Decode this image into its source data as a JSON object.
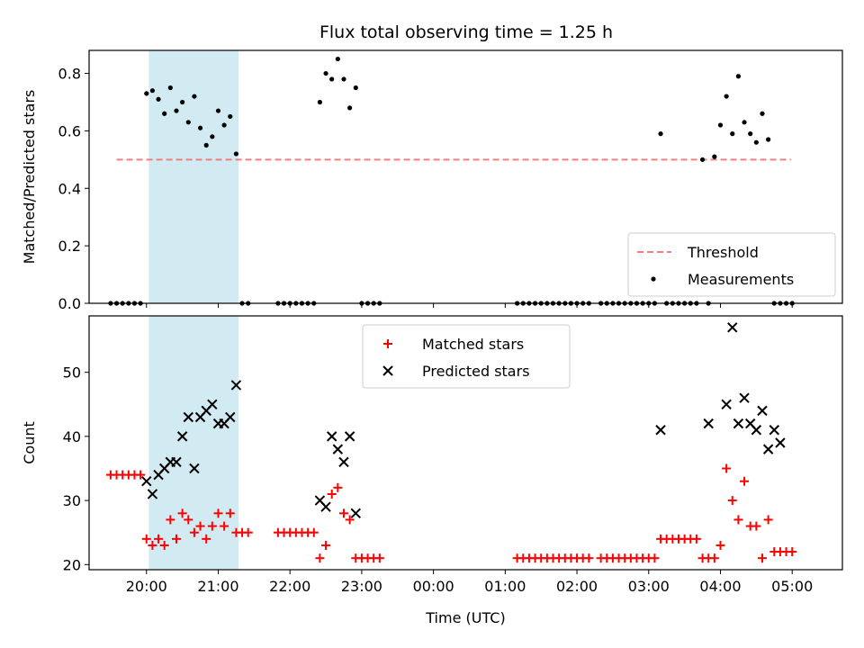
{
  "figure": {
    "title": "Flux total observing time = 1.25 h"
  },
  "chart_data": [
    {
      "type": "scatter",
      "ylabel": "Matched/Predicted stars",
      "ylim": [
        0,
        0.88
      ],
      "yticks": [
        "0.0",
        "0.2",
        "0.4",
        "0.6",
        "0.8"
      ],
      "ytick_values": [
        0,
        0.2,
        0.4,
        0.6,
        0.8
      ],
      "shaded_span": [
        "20:02",
        "21:17"
      ],
      "shade_color": "#add8e6",
      "legend_position": "lower right",
      "series": [
        {
          "name": "Threshold",
          "kind": "dashed-line",
          "color": "#f08080",
          "x": [
            "19:35",
            "04:59"
          ],
          "y": [
            0.5,
            0.5
          ]
        },
        {
          "name": "Measurements",
          "kind": "dots",
          "color": "#000000",
          "x": [
            "19:30",
            "19:35",
            "19:40",
            "19:45",
            "19:50",
            "19:55",
            "20:00",
            "20:05",
            "20:10",
            "20:15",
            "20:20",
            "20:25",
            "20:30",
            "20:35",
            "20:40",
            "20:45",
            "20:50",
            "20:55",
            "21:00",
            "21:05",
            "21:10",
            "21:15",
            "21:20",
            "21:25",
            "21:50",
            "21:55",
            "22:00",
            "22:05",
            "22:10",
            "22:15",
            "22:20",
            "22:25",
            "22:30",
            "22:35",
            "22:40",
            "22:45",
            "22:50",
            "22:55",
            "23:00",
            "23:05",
            "23:10",
            "23:15",
            "01:10",
            "01:15",
            "01:20",
            "01:25",
            "01:30",
            "01:35",
            "01:40",
            "01:45",
            "01:50",
            "01:55",
            "02:00",
            "02:05",
            "02:10",
            "02:20",
            "02:25",
            "02:30",
            "02:35",
            "02:40",
            "02:45",
            "02:50",
            "02:55",
            "03:00",
            "03:05",
            "03:10",
            "03:15",
            "03:20",
            "03:25",
            "03:30",
            "03:35",
            "03:40",
            "03:45",
            "03:50",
            "03:55",
            "04:00",
            "04:05",
            "04:10",
            "04:15",
            "04:20",
            "04:25",
            "04:30",
            "04:35",
            "04:40",
            "04:45",
            "04:50",
            "04:55",
            "05:00"
          ],
          "y": [
            0,
            0,
            0,
            0,
            0,
            0,
            0.73,
            0.74,
            0.71,
            0.66,
            0.75,
            0.67,
            0.7,
            0.63,
            0.72,
            0.61,
            0.55,
            0.58,
            0.67,
            0.62,
            0.65,
            0.52,
            0,
            0,
            0,
            0,
            0,
            0,
            0,
            0,
            0,
            0.7,
            0.8,
            0.78,
            0.85,
            0.78,
            0.68,
            0.75,
            0,
            0,
            0,
            0,
            0,
            0,
            0,
            0,
            0,
            0,
            0,
            0,
            0,
            0,
            0,
            0,
            0,
            0,
            0,
            0,
            0,
            0,
            0,
            0,
            0,
            0,
            0,
            0.59,
            0,
            0,
            0,
            0,
            0,
            0,
            0.5,
            0,
            0.51,
            0.62,
            0.72,
            0.59,
            0.79,
            0.63,
            0.59,
            0.56,
            0.66,
            0.57,
            0,
            0,
            0,
            0
          ]
        }
      ]
    },
    {
      "type": "scatter",
      "ylabel": "Count",
      "xlabel": "Time (UTC)",
      "ylim": [
        19.2,
        58.8
      ],
      "yticks": [
        "20",
        "30",
        "40",
        "50"
      ],
      "ytick_values": [
        20,
        30,
        40,
        50
      ],
      "xticks": [
        "20:00",
        "21:00",
        "22:00",
        "23:00",
        "00:00",
        "01:00",
        "02:00",
        "03:00",
        "04:00",
        "05:00"
      ],
      "shaded_span": [
        "20:02",
        "21:17"
      ],
      "shade_color": "#add8e6",
      "legend_position": "upper center",
      "series": [
        {
          "name": "Matched stars",
          "kind": "plus",
          "color": "#ff0000",
          "x": [
            "19:30",
            "19:35",
            "19:40",
            "19:45",
            "19:50",
            "19:55",
            "20:00",
            "20:05",
            "20:10",
            "20:15",
            "20:20",
            "20:25",
            "20:30",
            "20:35",
            "20:40",
            "20:45",
            "20:50",
            "20:55",
            "21:00",
            "21:05",
            "21:10",
            "21:15",
            "21:20",
            "21:25",
            "21:50",
            "21:55",
            "22:00",
            "22:05",
            "22:10",
            "22:15",
            "22:20",
            "22:25",
            "22:30",
            "22:35",
            "22:40",
            "22:45",
            "22:50",
            "22:55",
            "23:00",
            "23:05",
            "23:10",
            "23:15",
            "01:10",
            "01:15",
            "01:20",
            "01:25",
            "01:30",
            "01:35",
            "01:40",
            "01:45",
            "01:50",
            "01:55",
            "02:00",
            "02:05",
            "02:10",
            "02:20",
            "02:25",
            "02:30",
            "02:35",
            "02:40",
            "02:45",
            "02:50",
            "02:55",
            "03:00",
            "03:05",
            "03:10",
            "03:15",
            "03:20",
            "03:25",
            "03:30",
            "03:35",
            "03:40",
            "03:45",
            "03:50",
            "03:55",
            "04:00",
            "04:05",
            "04:10",
            "04:15",
            "04:20",
            "04:25",
            "04:30",
            "04:35",
            "04:40",
            "04:45",
            "04:50",
            "04:55",
            "05:00"
          ],
          "y": [
            34,
            34,
            34,
            34,
            34,
            34,
            24,
            23,
            24,
            23,
            27,
            24,
            28,
            27,
            25,
            26,
            24,
            26,
            28,
            26,
            28,
            25,
            25,
            25,
            25,
            25,
            25,
            25,
            25,
            25,
            25,
            21,
            23,
            31,
            32,
            28,
            27,
            21,
            21,
            21,
            21,
            21,
            21,
            21,
            21,
            21,
            21,
            21,
            21,
            21,
            21,
            21,
            21,
            21,
            21,
            21,
            21,
            21,
            21,
            21,
            21,
            21,
            21,
            21,
            21,
            24,
            24,
            24,
            24,
            24,
            24,
            24,
            21,
            21,
            21,
            23,
            35,
            30,
            27,
            33,
            26,
            26,
            21,
            27,
            22,
            22,
            22,
            22
          ]
        },
        {
          "name": "Predicted stars",
          "kind": "cross",
          "color": "#000000",
          "x": [
            "20:00",
            "20:05",
            "20:10",
            "20:15",
            "20:20",
            "20:25",
            "20:30",
            "20:35",
            "20:40",
            "20:45",
            "20:50",
            "20:55",
            "21:00",
            "21:05",
            "21:10",
            "21:15",
            "22:25",
            "22:30",
            "22:35",
            "22:40",
            "22:45",
            "22:50",
            "22:55",
            "03:10",
            "03:50",
            "04:05",
            "04:10",
            "04:15",
            "04:20",
            "04:25",
            "04:30",
            "04:35",
            "04:40",
            "04:45",
            "04:50"
          ],
          "y": [
            33,
            31,
            34,
            35,
            36,
            36,
            40,
            43,
            35,
            43,
            44,
            45,
            42,
            42,
            43,
            48,
            30,
            29,
            40,
            38,
            36,
            40,
            28,
            41,
            42,
            45,
            57,
            42,
            46,
            42,
            41,
            44,
            38,
            41,
            39
          ]
        }
      ]
    }
  ]
}
